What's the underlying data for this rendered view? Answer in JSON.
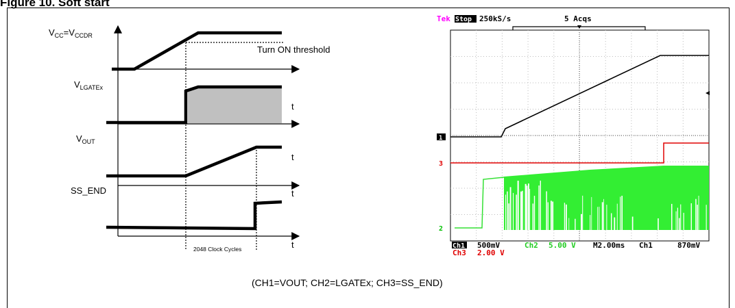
{
  "figure_title": "Figure 10.   Soft start",
  "timing": {
    "vcc_label": {
      "main": "V",
      "sub1": "CC",
      "mid": "=V",
      "sub2": "CCDR"
    },
    "threshold_label": "Turn ON threshold",
    "vlgate_label": {
      "main": "V",
      "sub": "LGATEx"
    },
    "vout_label": {
      "main": "V",
      "sub": "OUT"
    },
    "ss_end_label": "SS_END",
    "t_label": "t",
    "clock_label": "2048 Clock Cycles"
  },
  "scope": {
    "brand": "Tek",
    "state": "Stop",
    "sample_rate": "250kS/s",
    "acqs": "5 Acqs",
    "ch1_marker": "1",
    "ch2_marker": "2",
    "ch3_marker": "3",
    "ch1_name": "Ch1",
    "ch1_scale": "500mV",
    "ch2_name": "Ch2",
    "ch2_scale": "5.00 V",
    "ch3_name": "Ch3",
    "ch3_scale": "2.00 V",
    "timebase": "M2.00ms",
    "trigger_source": "Ch1",
    "trigger_level": "870mV",
    "colors": {
      "ch1": "#000000",
      "ch2": "#00e000",
      "ch3": "#e00000",
      "brand": "#ff00ff"
    }
  },
  "caption": "(CH1=VOUT; CH2=LGATEx; CH3=SS_END)"
}
